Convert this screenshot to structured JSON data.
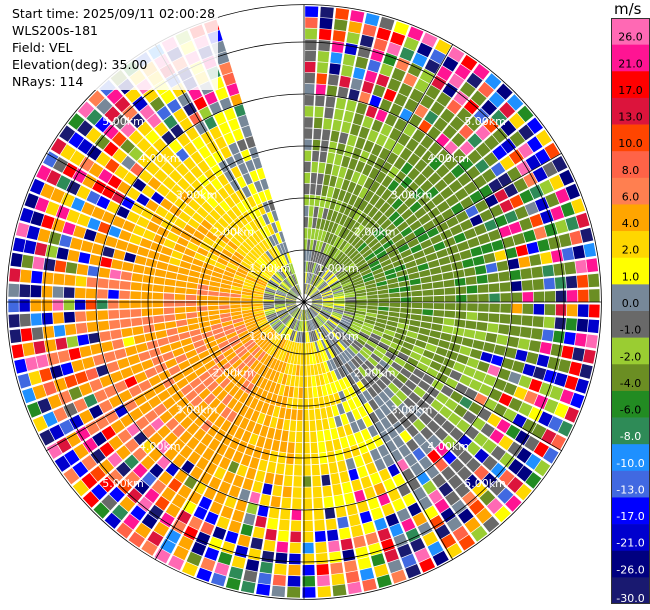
{
  "header": {
    "start_time": "Start time: 2025/09/11 02:00:28",
    "instrument": "WLS200s-181",
    "field": "Field: VEL",
    "elevation": "Elevation(deg): 35.00",
    "nrays": "NRays: 114"
  },
  "chart_data": {
    "type": "heatmap",
    "projection": "polar PPI",
    "field": "VEL",
    "units": "m/s",
    "range_rings_km": [
      1.0,
      2.0,
      3.0,
      4.0,
      5.0
    ],
    "ring_labels": [
      "1.00km",
      "2.00km",
      "3.00km",
      "4.00km",
      "5.00km"
    ],
    "max_range_km": 5.7,
    "nrays": 114,
    "azimuth_gap_deg": [
      -17,
      0
    ],
    "colorbar": {
      "title": "m/s",
      "tick_labels": [
        "26.0",
        "21.0",
        "17.0",
        "13.0",
        "10.0",
        "8.0",
        "6.0",
        "4.0",
        "2.0",
        "1.0",
        "0.0",
        "-1.0",
        "-2.0",
        "-4.0",
        "-6.0",
        "-8.0",
        "-10.0",
        "-13.0",
        "-17.0",
        "-21.0",
        "-26.0",
        "-30.0"
      ],
      "bins": [
        {
          "min": 26,
          "max": 30,
          "color": "#ff69b4"
        },
        {
          "min": 21,
          "max": 26,
          "color": "#ff1493"
        },
        {
          "min": 17,
          "max": 21,
          "color": "#ff0000"
        },
        {
          "min": 13,
          "max": 17,
          "color": "#dc143c"
        },
        {
          "min": 10,
          "max": 13,
          "color": "#ff4500"
        },
        {
          "min": 8,
          "max": 10,
          "color": "#ff6347"
        },
        {
          "min": 6,
          "max": 8,
          "color": "#ff7f50"
        },
        {
          "min": 4,
          "max": 6,
          "color": "#ffa500"
        },
        {
          "min": 2,
          "max": 4,
          "color": "#ffd700"
        },
        {
          "min": 1,
          "max": 2,
          "color": "#ffff00"
        },
        {
          "min": 0,
          "max": 1,
          "color": "#778899"
        },
        {
          "min": -1,
          "max": 0,
          "color": "#696969"
        },
        {
          "min": -2,
          "max": -1,
          "color": "#9acd32"
        },
        {
          "min": -4,
          "max": -2,
          "color": "#6b8e23"
        },
        {
          "min": -6,
          "max": -4,
          "color": "#228b22"
        },
        {
          "min": -8,
          "max": -6,
          "color": "#2e8b57"
        },
        {
          "min": -10,
          "max": -8,
          "color": "#1e90ff"
        },
        {
          "min": -13,
          "max": -10,
          "color": "#4169e1"
        },
        {
          "min": -17,
          "max": -13,
          "color": "#0000ff"
        },
        {
          "min": -21,
          "max": -17,
          "color": "#0000cd"
        },
        {
          "min": -26,
          "max": -21,
          "color": "#000080"
        },
        {
          "min": -30,
          "max": -26,
          "color": "#191970"
        }
      ]
    }
  }
}
